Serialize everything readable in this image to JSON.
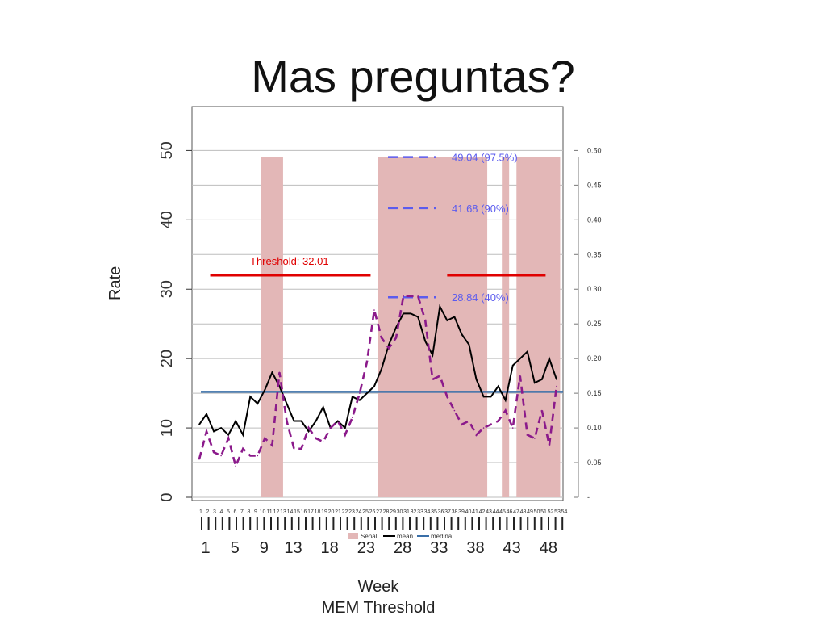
{
  "slide": {
    "title": "Mas preguntas?"
  },
  "chart_data": {
    "type": "line",
    "title": "",
    "xlabel": "Week",
    "ylabel": "Rate",
    "caption": "MEM Threshold",
    "ylim": [
      0,
      55
    ],
    "y_ticks": [
      0,
      10,
      20,
      30,
      40,
      50
    ],
    "y2_ticks": [
      "-",
      "0.05",
      "0.10",
      "0.15",
      "0.20",
      "0.25",
      "0.30",
      "0.35",
      "0.40",
      "0.45",
      "0.50"
    ],
    "week_ticks": [
      "1",
      "2",
      "3",
      "4",
      "5",
      "6",
      "7",
      "8",
      "9",
      "10",
      "11",
      "12",
      "13",
      "14",
      "15",
      "16",
      "17",
      "18",
      "19",
      "20",
      "21",
      "22",
      "23",
      "24",
      "25",
      "26",
      "27",
      "28",
      "29",
      "30",
      "31",
      "32",
      "33",
      "34",
      "35",
      "36",
      "37",
      "38",
      "39",
      "40",
      "41",
      "42",
      "43",
      "44",
      "45",
      "46",
      "47",
      "48",
      "49",
      "50",
      "51",
      "52",
      "53",
      "54"
    ],
    "lower_ticks": [
      "1",
      "5",
      "9",
      "13",
      "18",
      "23",
      "28",
      "33",
      "38",
      "43",
      "48"
    ],
    "lower_tick_weeks": [
      1,
      5,
      9,
      13,
      18,
      23,
      28,
      33,
      38,
      43,
      48
    ],
    "signal_bands": [
      [
        10,
        12
      ],
      [
        26,
        40
      ],
      [
        43,
        43
      ],
      [
        45,
        50
      ]
    ],
    "band_top": 49,
    "threshold": {
      "label": "Threshold: 32.01",
      "value": 32.01,
      "segments": [
        [
          2.5,
          24.5
        ],
        [
          35,
          48.5
        ]
      ]
    },
    "intensity_levels": [
      {
        "label": "49.04 (97.5%)",
        "value": 49.04
      },
      {
        "label": "41.68 (90%)",
        "value": 41.68
      },
      {
        "label": "28.84 (40%)",
        "value": 28.84
      }
    ],
    "median_value": 15.2,
    "legend": {
      "position": "bottom",
      "items": [
        "Señal",
        "mean",
        "medina"
      ]
    },
    "colors": {
      "mean": "#000000",
      "dashed": "#8b1a8b",
      "threshold": "#e00000",
      "median": "#3a6fa8",
      "band": "#e3b7b7",
      "levels": "#5b5bee"
    },
    "series": [
      {
        "name": "mean",
        "x": [
          1,
          2,
          3,
          4,
          5,
          6,
          7,
          8,
          9,
          10,
          11,
          12,
          13,
          14,
          15,
          16,
          17,
          18,
          19,
          20,
          21,
          22,
          23,
          24,
          25,
          26,
          27,
          28,
          29,
          30,
          31,
          32,
          33,
          34,
          35,
          36,
          37,
          38,
          39,
          40,
          41,
          42,
          43,
          44,
          45,
          46,
          47,
          48,
          49,
          50
        ],
        "values": [
          10.5,
          12,
          9.5,
          10,
          9,
          11,
          9,
          14.5,
          13.5,
          15.5,
          18,
          16,
          13.5,
          11,
          11,
          9.5,
          11,
          13,
          10,
          11,
          10,
          14.5,
          14,
          15,
          16,
          18.5,
          22,
          24.5,
          26.5,
          26.5,
          26,
          22.5,
          20.5,
          27.5,
          25.5,
          26,
          23.5,
          22,
          17,
          14.5,
          14.5,
          16,
          14,
          19,
          20,
          21,
          16.5,
          17,
          20,
          17
        ]
      },
      {
        "name": "",
        "x": [
          1,
          2,
          3,
          4,
          5,
          6,
          7,
          8,
          9,
          10,
          11,
          12,
          13,
          14,
          15,
          16,
          17,
          18,
          19,
          20,
          21,
          22,
          23,
          24,
          25,
          26,
          27,
          28,
          29,
          30,
          31,
          32,
          33,
          34,
          35,
          36,
          37,
          38,
          39,
          40,
          41,
          42,
          43,
          44,
          45,
          46,
          47,
          48,
          49,
          50
        ],
        "values": [
          5.5,
          9.5,
          6.5,
          6,
          8.5,
          4.5,
          7,
          6,
          6,
          8.5,
          7.5,
          18,
          11,
          7,
          7,
          10,
          8.5,
          8,
          10,
          11,
          9,
          11.5,
          15,
          19.5,
          27,
          23,
          21.5,
          23,
          29,
          29,
          29,
          25.5,
          17,
          17.5,
          14.5,
          12.5,
          10.5,
          11,
          9,
          10,
          10.5,
          11,
          12.5,
          10,
          17.5,
          9,
          8.5,
          12.5,
          7.5,
          16
        ]
      }
    ]
  }
}
